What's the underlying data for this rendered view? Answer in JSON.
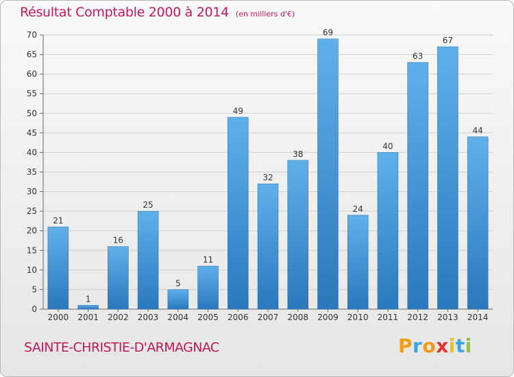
{
  "chart_data": {
    "type": "bar",
    "title": "Résultat Comptable 2000 à 2014",
    "subtitle": "(en milliers d'€)",
    "categories": [
      "2000",
      "2001",
      "2002",
      "2003",
      "2004",
      "2005",
      "2006",
      "2007",
      "2008",
      "2009",
      "2010",
      "2011",
      "2012",
      "2013",
      "2014"
    ],
    "values": [
      21,
      1,
      16,
      25,
      5,
      11,
      49,
      32,
      38,
      69,
      24,
      40,
      63,
      67,
      44
    ],
    "ylim": [
      0,
      70
    ],
    "yticks": [
      0,
      5,
      10,
      15,
      20,
      25,
      30,
      35,
      40,
      45,
      50,
      55,
      60,
      65,
      70
    ],
    "grid": true,
    "xlabel": "",
    "ylabel": "",
    "bar_color": "#3d8fd4"
  },
  "footer": {
    "town": "SAINTE-CHRISTIE-D'ARMAGNAC"
  },
  "logo": {
    "letters": [
      "P",
      "r",
      "o",
      "x",
      "i",
      "t",
      "i"
    ],
    "colors": [
      "#f39c12",
      "#3aa6e0",
      "#f39c12",
      "#e8312f",
      "#e8c700",
      "#3aa6e0",
      "#8cc43a"
    ]
  },
  "colors": {
    "accent": "#c0195a"
  }
}
